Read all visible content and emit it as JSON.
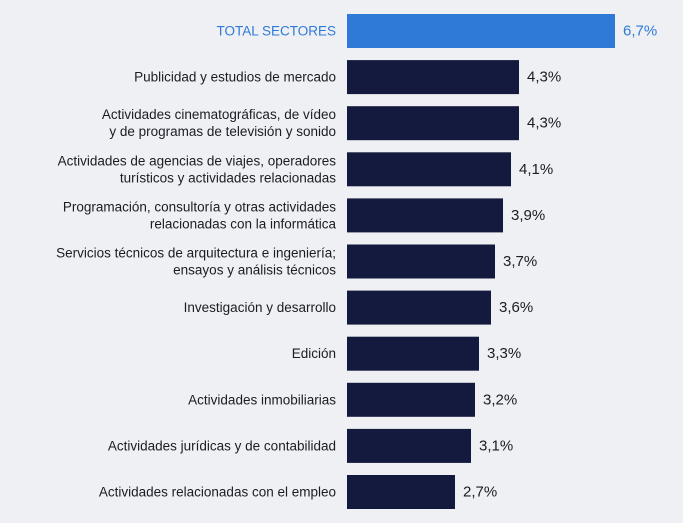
{
  "chart_data": {
    "type": "bar",
    "orientation": "horizontal",
    "title": "",
    "xlabel": "",
    "ylabel": "",
    "xlim": [
      0,
      7.5
    ],
    "grid": false,
    "legend": "none",
    "colors": {
      "highlight": "#2f7ad6",
      "bar": "#131a3d",
      "background": "#eef0f4"
    },
    "categories": [
      [
        "TOTAL SECTORES"
      ],
      [
        "Publicidad y estudios de mercado"
      ],
      [
        "Actividades cinematográficas, de vídeo",
        "y de programas de televisión y sonido"
      ],
      [
        "Actividades de agencias de viajes, operadores",
        "turísticos y actividades relacionadas"
      ],
      [
        "Programación, consultoría y otras actividades",
        "relacionadas con la informática"
      ],
      [
        "Servicios técnicos de arquitectura e ingeniería;",
        "ensayos y análisis técnicos"
      ],
      [
        "Investigación y desarrollo"
      ],
      [
        "Edición"
      ],
      [
        "Actividades inmobiliarias"
      ],
      [
        "Actividades jurídicas y de contabilidad"
      ],
      [
        "Actividades relacionadas con el empleo"
      ]
    ],
    "values": [
      6.7,
      4.3,
      4.3,
      4.1,
      3.9,
      3.7,
      3.6,
      3.3,
      3.2,
      3.1,
      2.7
    ],
    "value_labels": [
      "6,7%",
      "4,3%",
      "4,3%",
      "4,1%",
      "3,9%",
      "3,7%",
      "3,6%",
      "3,3%",
      "3,2%",
      "3,1%",
      "2,7%"
    ],
    "highlight_index": 0
  }
}
